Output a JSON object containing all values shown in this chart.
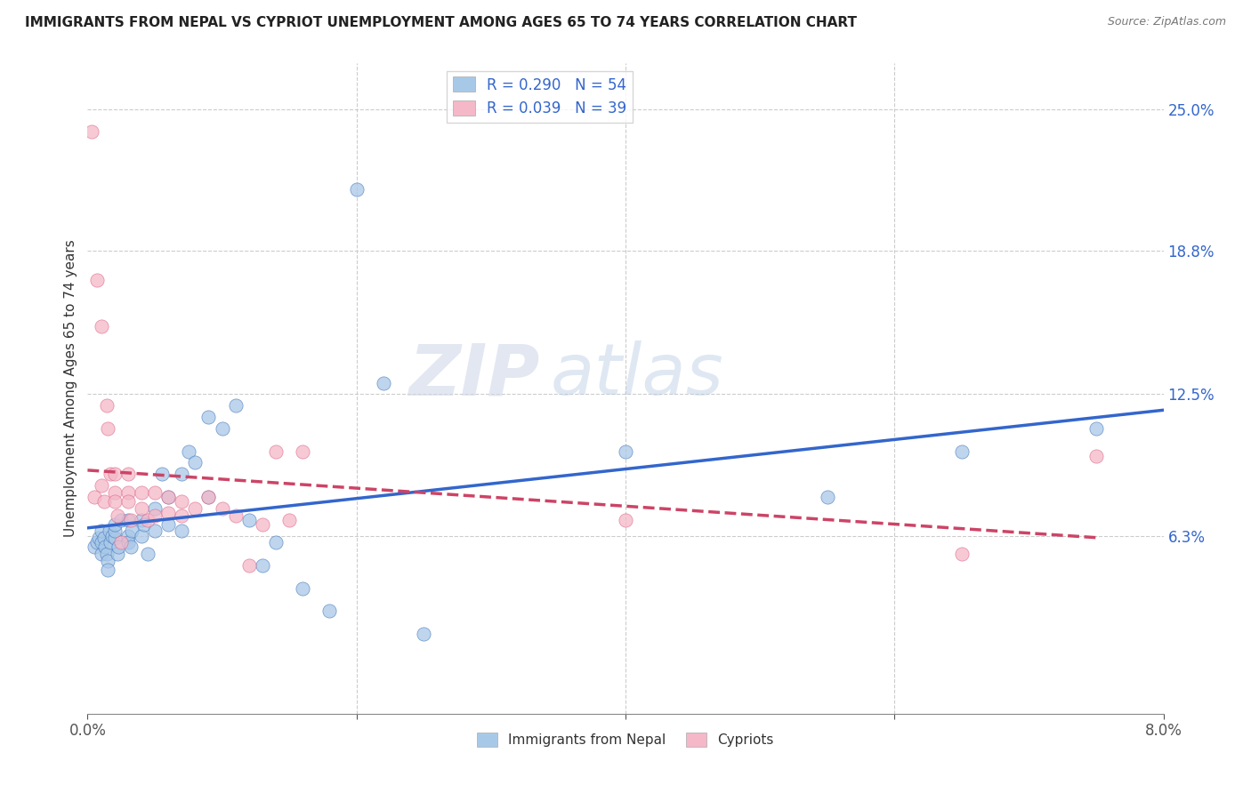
{
  "title": "IMMIGRANTS FROM NEPAL VS CYPRIOT UNEMPLOYMENT AMONG AGES 65 TO 74 YEARS CORRELATION CHART",
  "source": "Source: ZipAtlas.com",
  "ylabel": "Unemployment Among Ages 65 to 74 years",
  "xlim": [
    0.0,
    0.08
  ],
  "ylim": [
    -0.015,
    0.27
  ],
  "xtick_positions": [
    0.0,
    0.02,
    0.04,
    0.06,
    0.08
  ],
  "xtick_labels": [
    "0.0%",
    "",
    "",
    "",
    "8.0%"
  ],
  "ytick_vals_right": [
    0.063,
    0.125,
    0.188,
    0.25
  ],
  "ytick_labels_right": [
    "6.3%",
    "12.5%",
    "18.8%",
    "25.0%"
  ],
  "color_nepal": "#a8c8e8",
  "color_cypriot": "#f4b8c8",
  "color_nepal_line": "#3366cc",
  "color_cypriot_line": "#cc4466",
  "color_nepal_dark": "#4477bb",
  "color_cypriot_dark": "#dd6688",
  "nepal_scatter_x": [
    0.0005,
    0.0007,
    0.0008,
    0.001,
    0.001,
    0.001,
    0.0012,
    0.0013,
    0.0014,
    0.0015,
    0.0015,
    0.0016,
    0.0017,
    0.0018,
    0.002,
    0.002,
    0.002,
    0.0022,
    0.0023,
    0.0025,
    0.003,
    0.003,
    0.003,
    0.0032,
    0.0033,
    0.004,
    0.004,
    0.0042,
    0.0045,
    0.005,
    0.005,
    0.0055,
    0.006,
    0.006,
    0.007,
    0.007,
    0.0075,
    0.008,
    0.009,
    0.009,
    0.01,
    0.011,
    0.012,
    0.013,
    0.014,
    0.016,
    0.018,
    0.02,
    0.022,
    0.025,
    0.04,
    0.055,
    0.065,
    0.075
  ],
  "nepal_scatter_y": [
    0.058,
    0.06,
    0.062,
    0.055,
    0.06,
    0.065,
    0.062,
    0.058,
    0.055,
    0.052,
    0.048,
    0.065,
    0.06,
    0.063,
    0.062,
    0.065,
    0.068,
    0.055,
    0.058,
    0.07,
    0.063,
    0.06,
    0.07,
    0.058,
    0.065,
    0.07,
    0.063,
    0.068,
    0.055,
    0.075,
    0.065,
    0.09,
    0.08,
    0.068,
    0.09,
    0.065,
    0.1,
    0.095,
    0.115,
    0.08,
    0.11,
    0.12,
    0.07,
    0.05,
    0.06,
    0.04,
    0.03,
    0.215,
    0.13,
    0.02,
    0.1,
    0.08,
    0.1,
    0.11
  ],
  "cypriot_scatter_x": [
    0.0003,
    0.0005,
    0.0007,
    0.001,
    0.001,
    0.0012,
    0.0014,
    0.0015,
    0.0017,
    0.002,
    0.002,
    0.002,
    0.0022,
    0.0025,
    0.003,
    0.003,
    0.003,
    0.0032,
    0.004,
    0.004,
    0.0045,
    0.005,
    0.005,
    0.006,
    0.006,
    0.007,
    0.007,
    0.008,
    0.009,
    0.01,
    0.011,
    0.012,
    0.013,
    0.014,
    0.015,
    0.016,
    0.04,
    0.065,
    0.075
  ],
  "cypriot_scatter_y": [
    0.24,
    0.08,
    0.175,
    0.085,
    0.155,
    0.078,
    0.12,
    0.11,
    0.09,
    0.09,
    0.082,
    0.078,
    0.072,
    0.06,
    0.09,
    0.082,
    0.078,
    0.07,
    0.082,
    0.075,
    0.07,
    0.082,
    0.072,
    0.08,
    0.073,
    0.078,
    0.072,
    0.075,
    0.08,
    0.075,
    0.072,
    0.05,
    0.068,
    0.1,
    0.07,
    0.1,
    0.07,
    0.055,
    0.098
  ],
  "watermark_zip": "ZIP",
  "watermark_atlas": "atlas",
  "background_color": "#ffffff",
  "grid_color": "#cccccc",
  "legend_items": [
    {
      "label": "R = 0.290   N = 54",
      "color": "#a8c8e8"
    },
    {
      "label": "R = 0.039   N = 39",
      "color": "#f4b8c8"
    }
  ],
  "bottom_legend": [
    {
      "label": "Immigrants from Nepal",
      "color": "#a8c8e8"
    },
    {
      "label": "Cypriots",
      "color": "#f4b8c8"
    }
  ]
}
